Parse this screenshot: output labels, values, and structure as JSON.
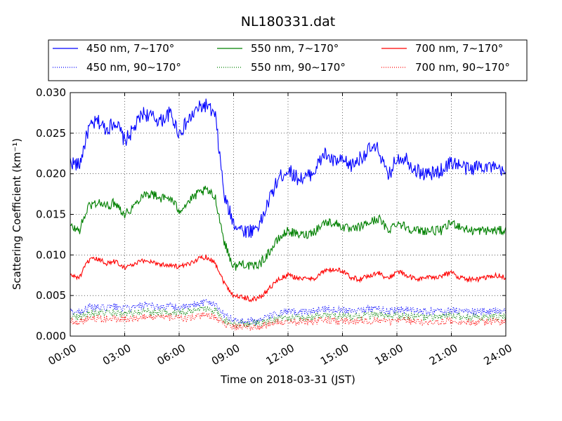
{
  "chart_data": {
    "type": "line",
    "title": "NL180331.dat",
    "xlabel": "Time on 2018-03-31 (JST)",
    "ylabel": "Scattering Coefficient (km⁻¹)",
    "xlim": [
      "00:00",
      "24:00"
    ],
    "ylim": [
      0,
      0.03
    ],
    "x_ticks": [
      "00:00",
      "03:00",
      "06:00",
      "09:00",
      "12:00",
      "15:00",
      "18:00",
      "21:00",
      "24:00"
    ],
    "y_ticks": [
      "0.000",
      "0.005",
      "0.010",
      "0.015",
      "0.020",
      "0.025",
      "0.030"
    ],
    "grid": true,
    "legend_position": "top",
    "x_hours": [
      0,
      0.5,
      1,
      1.5,
      2,
      2.5,
      3,
      3.5,
      4,
      4.5,
      5,
      5.5,
      6,
      6.5,
      7,
      7.5,
      8,
      8.5,
      9,
      9.5,
      10,
      10.5,
      11,
      11.5,
      12,
      12.5,
      13,
      13.5,
      14,
      14.5,
      15,
      15.5,
      16,
      16.5,
      17,
      17.5,
      18,
      18.5,
      19,
      19.5,
      20,
      20.5,
      21,
      21.5,
      22,
      22.5,
      23,
      23.5,
      24
    ],
    "series": [
      {
        "name": "450 nm, 7∼170°",
        "color": "#0000ff",
        "style": "solid",
        "values": [
          0.0215,
          0.021,
          0.0255,
          0.0265,
          0.0255,
          0.0265,
          0.024,
          0.0255,
          0.0275,
          0.027,
          0.0265,
          0.0275,
          0.025,
          0.0265,
          0.028,
          0.0285,
          0.027,
          0.017,
          0.014,
          0.013,
          0.013,
          0.014,
          0.017,
          0.0195,
          0.0205,
          0.0195,
          0.0195,
          0.0205,
          0.0225,
          0.0215,
          0.0215,
          0.021,
          0.022,
          0.023,
          0.023,
          0.0195,
          0.022,
          0.022,
          0.0205,
          0.02,
          0.02,
          0.0205,
          0.0215,
          0.021,
          0.0205,
          0.021,
          0.021,
          0.0205,
          0.02
        ]
      },
      {
        "name": "550 nm, 7∼170°",
        "color": "#008000",
        "style": "solid",
        "values": [
          0.0135,
          0.013,
          0.016,
          0.0165,
          0.016,
          0.0165,
          0.015,
          0.016,
          0.0175,
          0.0175,
          0.017,
          0.017,
          0.0155,
          0.0165,
          0.0175,
          0.018,
          0.017,
          0.0115,
          0.0085,
          0.009,
          0.0085,
          0.009,
          0.0105,
          0.012,
          0.013,
          0.0125,
          0.0125,
          0.013,
          0.014,
          0.014,
          0.0135,
          0.013,
          0.0135,
          0.014,
          0.0145,
          0.013,
          0.014,
          0.0135,
          0.013,
          0.013,
          0.013,
          0.013,
          0.014,
          0.0135,
          0.013,
          0.013,
          0.013,
          0.013,
          0.013
        ]
      },
      {
        "name": "700 nm, 7∼170°",
        "color": "#ff0000",
        "style": "solid",
        "values": [
          0.0075,
          0.0072,
          0.0093,
          0.0095,
          0.009,
          0.0092,
          0.0085,
          0.0088,
          0.0093,
          0.0092,
          0.0088,
          0.0088,
          0.0085,
          0.0088,
          0.0095,
          0.0098,
          0.009,
          0.0065,
          0.005,
          0.0048,
          0.0045,
          0.0048,
          0.006,
          0.007,
          0.0075,
          0.0072,
          0.007,
          0.0072,
          0.008,
          0.0082,
          0.008,
          0.0072,
          0.007,
          0.0075,
          0.0078,
          0.007,
          0.008,
          0.0075,
          0.007,
          0.0072,
          0.0072,
          0.0075,
          0.0078,
          0.0072,
          0.007,
          0.007,
          0.0072,
          0.0075,
          0.0072
        ]
      },
      {
        "name": "450 nm, 90∼170°",
        "color": "#0000ff",
        "style": "dotted",
        "values": [
          0.003,
          0.003,
          0.0035,
          0.0035,
          0.0035,
          0.0036,
          0.0034,
          0.0035,
          0.0037,
          0.0037,
          0.0036,
          0.0037,
          0.0035,
          0.0036,
          0.004,
          0.0042,
          0.004,
          0.0025,
          0.002,
          0.0018,
          0.0018,
          0.002,
          0.0025,
          0.0028,
          0.003,
          0.0029,
          0.003,
          0.0031,
          0.0034,
          0.0033,
          0.0033,
          0.0032,
          0.0033,
          0.0034,
          0.0034,
          0.003,
          0.0033,
          0.0033,
          0.0031,
          0.003,
          0.003,
          0.0031,
          0.0032,
          0.0031,
          0.003,
          0.003,
          0.003,
          0.0031,
          0.003
        ]
      },
      {
        "name": "550 nm, 90∼170°",
        "color": "#008000",
        "style": "dotted",
        "values": [
          0.0025,
          0.0024,
          0.0028,
          0.0029,
          0.0028,
          0.0029,
          0.0027,
          0.0028,
          0.003,
          0.003,
          0.0029,
          0.003,
          0.0028,
          0.0029,
          0.0032,
          0.0033,
          0.0031,
          0.002,
          0.0016,
          0.0015,
          0.0015,
          0.0016,
          0.0019,
          0.0022,
          0.0023,
          0.0022,
          0.0023,
          0.0024,
          0.0026,
          0.0025,
          0.0025,
          0.0024,
          0.0025,
          0.0026,
          0.0026,
          0.0023,
          0.0025,
          0.0025,
          0.0024,
          0.0023,
          0.0023,
          0.0024,
          0.0025,
          0.0024,
          0.0023,
          0.0023,
          0.0023,
          0.0024,
          0.0023
        ]
      },
      {
        "name": "700 nm, 90∼170°",
        "color": "#ff0000",
        "style": "dotted",
        "values": [
          0.0019,
          0.0018,
          0.0022,
          0.0022,
          0.0021,
          0.0022,
          0.0021,
          0.0022,
          0.0023,
          0.0023,
          0.0022,
          0.0023,
          0.0022,
          0.0022,
          0.0024,
          0.0025,
          0.0023,
          0.0015,
          0.0012,
          0.0011,
          0.0011,
          0.0012,
          0.0015,
          0.0017,
          0.0018,
          0.0017,
          0.0017,
          0.0018,
          0.002,
          0.0019,
          0.0019,
          0.0018,
          0.0019,
          0.0019,
          0.002,
          0.0017,
          0.0019,
          0.0019,
          0.0018,
          0.0017,
          0.0017,
          0.0018,
          0.0019,
          0.0018,
          0.0017,
          0.0017,
          0.0017,
          0.0018,
          0.0017
        ]
      }
    ],
    "legend_order": [
      0,
      1,
      2,
      3,
      4,
      5
    ]
  }
}
